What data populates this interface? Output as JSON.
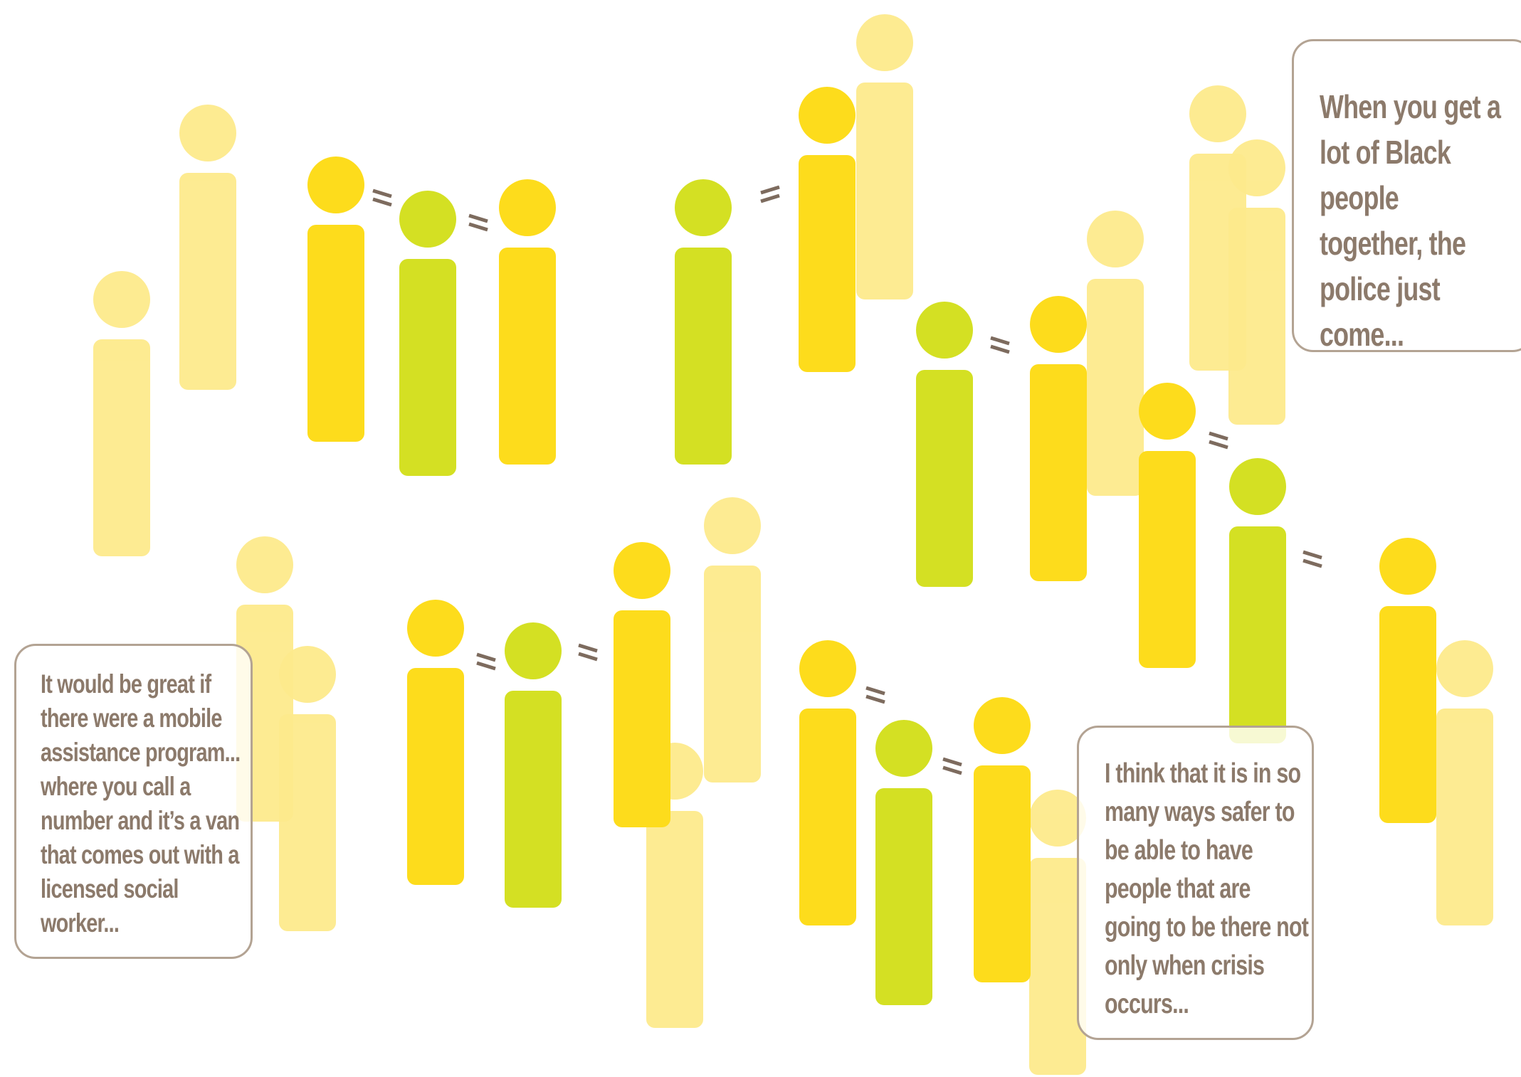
{
  "colors": {
    "pale": "#fdea8c",
    "gold": "#fddc1c",
    "lime": "#d4e023",
    "connector": "#7d6b5e",
    "quote_text": "#8c7a6b",
    "quote_border": "#b3a393"
  },
  "figure_types": [
    "pale-person",
    "gold-person",
    "lime-person",
    "equals-connector"
  ],
  "quotes": [
    {
      "id": "quote-1",
      "text": "When you get a lot of Black people together, the police just come..."
    },
    {
      "id": "quote-2",
      "text": "It would be great if there were a mobile assistance program... where you call a number and it’s a van that comes out with a licensed social worker..."
    },
    {
      "id": "quote-3",
      "text": "I think that it is in so many ways safer to be able to have people that are going to be there not only when crisis occurs..."
    }
  ]
}
